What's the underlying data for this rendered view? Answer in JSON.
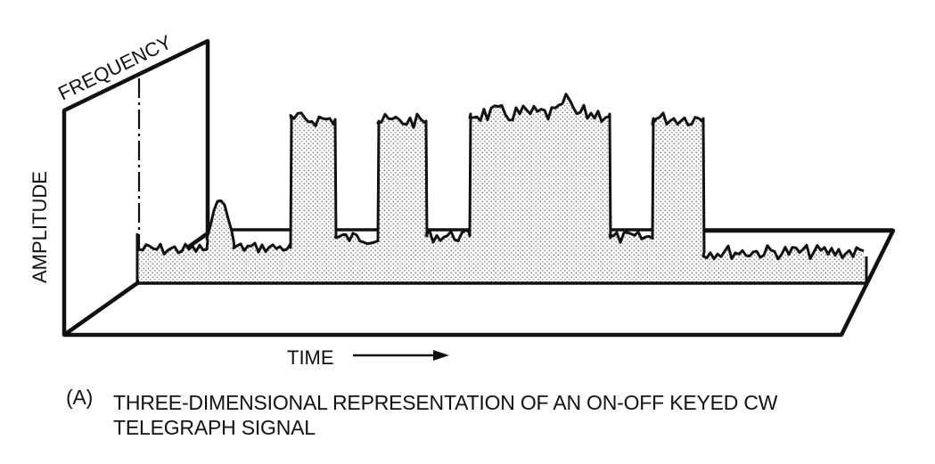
{
  "figure": {
    "axis_labels": {
      "frequency": "FREQUENCY",
      "amplitude": "AMPLITUDE",
      "time": "TIME"
    },
    "caption": {
      "label": "(A)",
      "line1": "THREE-DIMENSIONAL REPRESENTATION OF AN ON-OFF KEYED CW",
      "line2": "TELEGRAPH SIGNAL"
    },
    "colors": {
      "ink": "#111111",
      "fill_dots": "#6e6e6e",
      "background": "#ffffff"
    }
  }
}
